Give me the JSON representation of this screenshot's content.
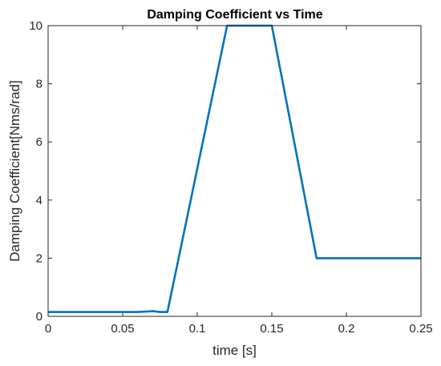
{
  "chart_data": {
    "type": "line",
    "title": "Damping Coefficient vs Time",
    "xlabel": "time [s]",
    "ylabel": "Damping Coefficient[Nms/rad]",
    "xlim": [
      0,
      0.25
    ],
    "ylim": [
      0,
      10
    ],
    "xticks": [
      0,
      0.05,
      0.1,
      0.15,
      0.2,
      0.25
    ],
    "xtick_labels": [
      "0",
      "0.05",
      "0.1",
      "0.15",
      "0.2",
      "0.25"
    ],
    "yticks": [
      0,
      2,
      4,
      6,
      8,
      10
    ],
    "ytick_labels": [
      "0",
      "2",
      "4",
      "6",
      "8",
      "10"
    ],
    "grid": false,
    "box": true,
    "series": [
      {
        "color": "#0072BD",
        "x": [
          0,
          0.02,
          0.04,
          0.06,
          0.068,
          0.07,
          0.075,
          0.08,
          0.12,
          0.15,
          0.18,
          0.25
        ],
        "y": [
          0.15,
          0.15,
          0.15,
          0.15,
          0.17,
          0.18,
          0.15,
          0.15,
          10,
          10,
          2,
          2
        ]
      }
    ]
  }
}
